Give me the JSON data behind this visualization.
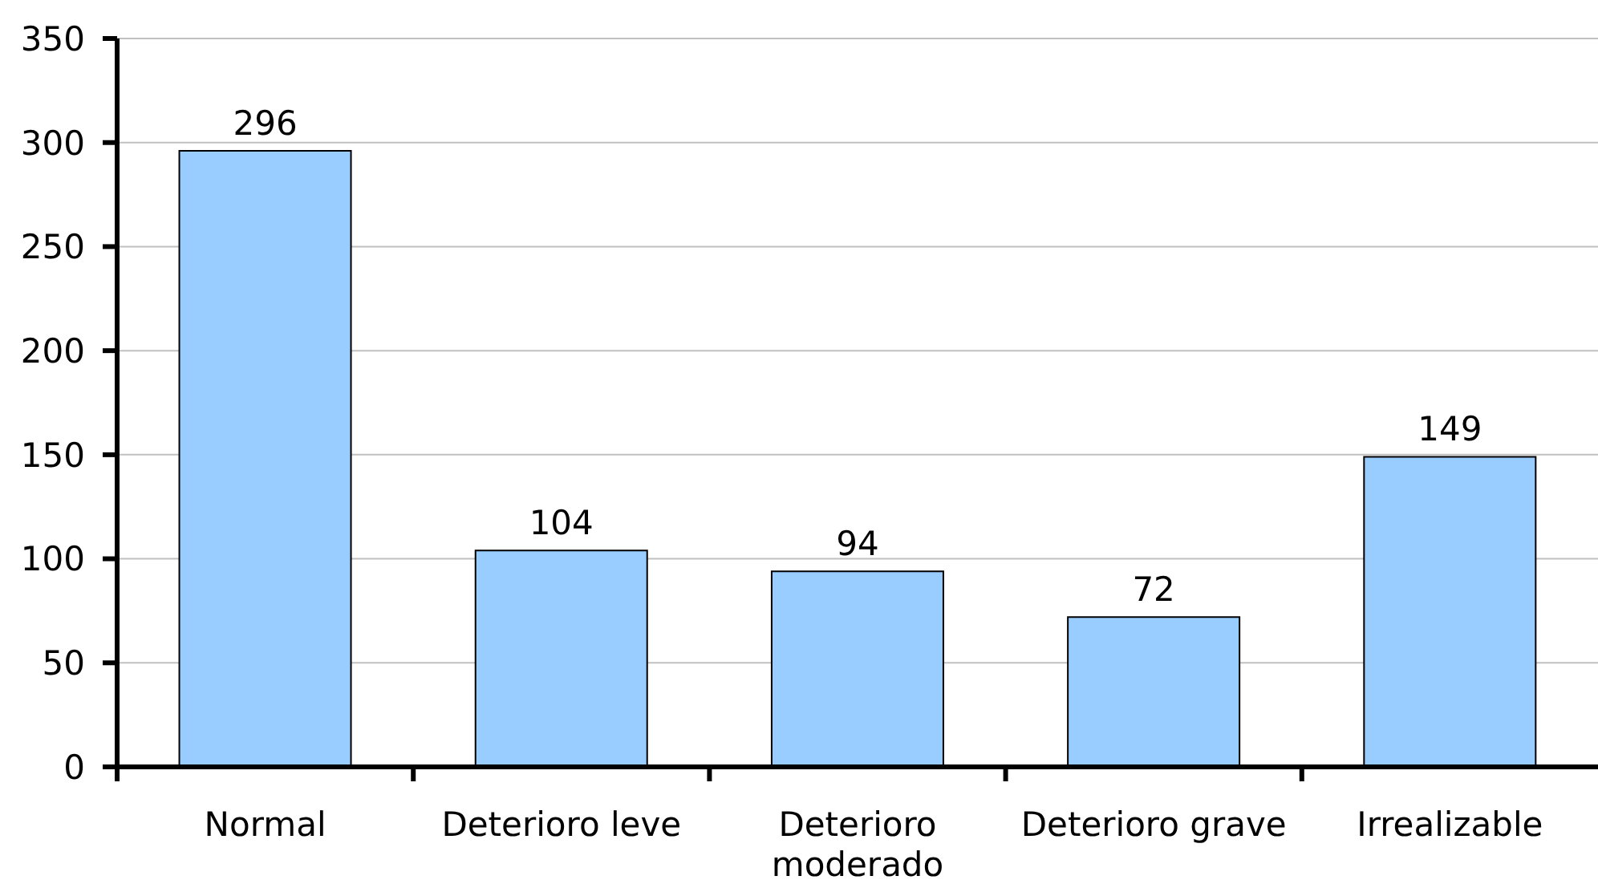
{
  "chart_data": {
    "type": "bar",
    "categories": [
      "Normal",
      "Deterioro leve",
      "Deterioro moderado",
      "Deterioro grave",
      "Irrealizable"
    ],
    "values": [
      296,
      104,
      94,
      72,
      149
    ],
    "color": "#99ccff",
    "ylim": [
      0,
      350
    ],
    "yticks": [
      0,
      50,
      100,
      150,
      200,
      250,
      300,
      350
    ],
    "grid": "y",
    "data_labels": true
  }
}
